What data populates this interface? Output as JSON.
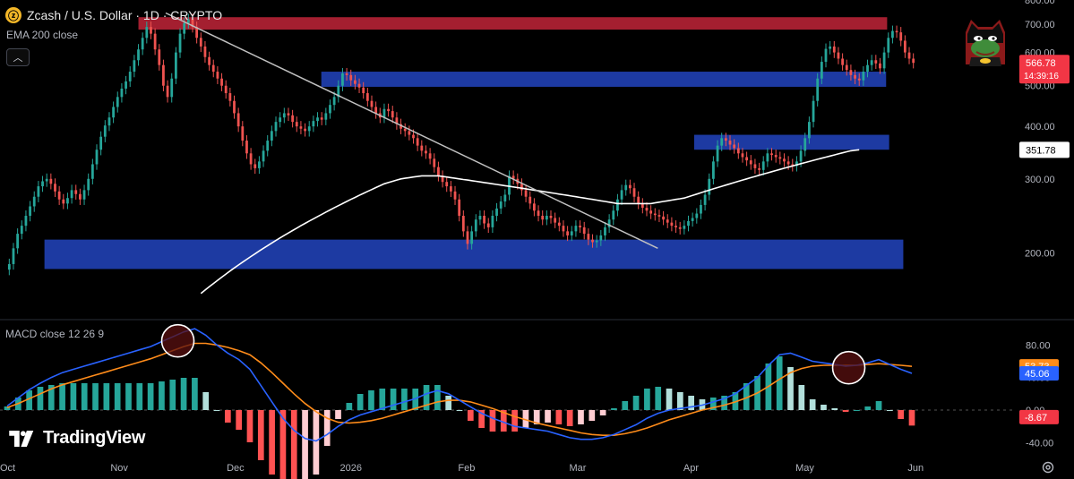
{
  "header": {
    "title": "Zcash / U.S. Dollar · 1D · CRYPTO",
    "coin_icon_glyph": "ⓩ",
    "coin_color": "#f4b728"
  },
  "indicators": {
    "ema_label": "EMA 200 close",
    "macd_label": "MACD close 12 26 9",
    "collapse_icon": "chevron-up-icon"
  },
  "watermark": {
    "text": "TradingView"
  },
  "colors": {
    "bull": "#26a69a",
    "bear": "#ef5350",
    "ema": "#ffffff",
    "trendline": "#c0c0c0",
    "resistance_zone": "#b22234",
    "support_zone": "#1f3fb0",
    "macd_line": "#2962ff",
    "signal_line": "#ff8c1a",
    "price_tag": "#f23645",
    "ema_tag_bg": "#ffffff"
  },
  "chart_data": [
    {
      "type": "candlestick",
      "symbol": "Zcash / U.S. Dollar",
      "interval": "1D",
      "x_tick_labels": [
        "Oct",
        "Nov",
        "Dec",
        "2026",
        "Feb",
        "Mar",
        "Apr",
        "May",
        "Jun"
      ],
      "y_tick_labels": [
        "800.00",
        "700.00",
        "600.00",
        "500.00",
        "400.00",
        "300.00",
        "200.00"
      ],
      "ylim": [
        140,
        800
      ],
      "scale": "log",
      "last_price": "566.78",
      "countdown": "14:39:16",
      "ema_value": "351.78",
      "close_series": [
        188,
        205,
        222,
        232,
        245,
        258,
        272,
        288,
        296,
        300,
        292,
        280,
        268,
        262,
        270,
        282,
        276,
        268,
        282,
        300,
        325,
        352,
        378,
        402,
        420,
        445,
        470,
        492,
        512,
        540,
        575,
        610,
        650,
        690,
        665,
        610,
        560,
        500,
        470,
        520,
        600,
        665,
        705,
        720,
        690,
        650,
        620,
        585,
        560,
        540,
        520,
        500,
        480,
        460,
        430,
        400,
        370,
        345,
        325,
        318,
        330,
        350,
        370,
        390,
        410,
        420,
        430,
        425,
        410,
        400,
        395,
        390,
        400,
        412,
        420,
        415,
        430,
        450,
        470,
        500,
        535,
        530,
        515,
        505,
        495,
        480,
        460,
        445,
        430,
        420,
        440,
        435,
        420,
        405,
        395,
        390,
        382,
        375,
        360,
        350,
        345,
        335,
        320,
        305,
        295,
        288,
        280,
        268,
        245,
        225,
        210,
        225,
        240,
        245,
        235,
        230,
        245,
        255,
        265,
        275,
        305,
        300,
        292,
        282,
        272,
        262,
        252,
        245,
        240,
        245,
        242,
        236,
        232,
        225,
        220,
        225,
        232,
        230,
        222,
        215,
        212,
        214,
        220,
        230,
        240,
        252,
        268,
        282,
        290,
        285,
        272,
        262,
        256,
        252,
        248,
        246,
        244,
        240,
        236,
        232,
        230,
        228,
        232,
        238,
        242,
        248,
        260,
        275,
        300,
        330,
        360,
        375,
        370,
        362,
        355,
        345,
        338,
        332,
        325,
        318,
        315,
        330,
        345,
        342,
        338,
        335,
        330,
        325,
        322,
        330,
        350,
        375,
        410,
        460,
        520,
        570,
        612,
        620,
        600,
        580,
        560,
        545,
        530,
        520,
        515,
        540,
        560,
        575,
        565,
        550,
        600,
        650,
        675,
        670,
        640,
        600,
        580,
        566.78
      ],
      "ema_series": [
        null,
        null,
        null,
        null,
        null,
        null,
        null,
        null,
        null,
        null,
        null,
        null,
        null,
        null,
        null,
        null,
        null,
        null,
        null,
        null,
        null,
        null,
        null,
        null,
        null,
        null,
        null,
        null,
        null,
        null,
        null,
        null,
        null,
        null,
        null,
        null,
        null,
        null,
        null,
        null,
        null,
        null,
        null,
        null,
        null,
        null,
        160,
        163,
        166,
        169,
        172,
        175,
        178,
        181,
        184,
        187,
        190,
        193,
        196,
        199,
        202,
        205,
        208,
        211,
        214,
        217,
        220,
        223,
        226,
        229,
        232,
        235,
        238,
        241,
        244,
        247,
        250,
        253,
        256,
        259,
        262,
        265,
        268,
        271,
        274,
        277,
        280,
        283,
        286,
        289,
        292,
        294,
        296,
        298,
        300,
        301,
        302,
        303,
        304,
        305,
        305,
        305,
        305,
        305,
        304,
        303,
        302,
        301,
        300,
        299,
        298,
        297,
        296,
        295,
        294,
        293,
        292,
        291,
        290,
        289,
        288,
        287,
        286,
        285,
        284,
        283,
        282,
        281,
        280,
        279,
        278,
        277,
        276,
        275,
        274,
        273,
        272,
        271,
        270,
        269,
        268,
        267,
        266,
        265,
        264,
        263,
        262,
        262,
        262,
        262,
        262,
        262,
        262,
        262,
        262,
        263,
        264,
        265,
        266,
        267,
        268,
        269,
        270,
        272,
        274,
        276,
        278,
        280,
        282,
        284,
        286,
        288,
        290,
        292,
        294,
        296,
        298,
        300,
        302,
        304,
        306,
        308,
        310,
        312,
        314,
        316,
        318,
        320,
        322,
        324,
        326,
        328,
        330,
        332,
        334,
        336,
        338,
        340,
        342,
        344,
        346,
        348,
        350,
        351,
        351.78
      ],
      "zones": [
        {
          "kind": "resistance",
          "color": "#b22234",
          "from": 680,
          "to": 728,
          "x_from": 0.137,
          "x_to": 0.878
        },
        {
          "kind": "support",
          "color": "#1f3fb0",
          "from": 497,
          "to": 540,
          "x_from": 0.318,
          "x_to": 0.877
        },
        {
          "kind": "support",
          "color": "#1f3fb0",
          "from": 352,
          "to": 382,
          "x_from": 0.687,
          "x_to": 0.88
        },
        {
          "kind": "support",
          "color": "#1f3fb0",
          "from": 183,
          "to": 215,
          "x_from": 0.044,
          "x_to": 0.894
        }
      ],
      "trendline": {
        "from": 745,
        "to": 205,
        "x_from": 0.164,
        "x_to": 0.651
      }
    },
    {
      "type": "macd",
      "y_tick_labels": [
        "80.00",
        "40.00",
        "0.00",
        "-40.00"
      ],
      "ylim": [
        -55,
        110
      ],
      "macd_value": "45.06",
      "signal_value": "53.73",
      "hist_value": "-8.67",
      "macd_series": [
        5,
        15,
        25,
        33,
        40,
        46,
        50,
        54,
        58,
        62,
        66,
        70,
        74,
        78,
        84,
        90,
        96,
        100,
        92,
        80,
        70,
        62,
        50,
        30,
        10,
        -10,
        -25,
        -35,
        -38,
        -30,
        -20,
        -12,
        -6,
        -2,
        2,
        6,
        10,
        14,
        20,
        24,
        20,
        12,
        4,
        -4,
        -10,
        -15,
        -20,
        -22,
        -24,
        -26,
        -30,
        -34,
        -36,
        -36,
        -34,
        -30,
        -24,
        -18,
        -10,
        -4,
        0,
        2,
        4,
        6,
        10,
        14,
        20,
        30,
        40,
        55,
        68,
        70,
        65,
        60,
        58,
        56,
        54,
        55,
        58,
        62,
        56,
        50,
        45.06
      ],
      "signal_series": [
        3,
        8,
        14,
        20,
        26,
        31,
        35,
        39,
        43,
        47,
        51,
        55,
        59,
        63,
        68,
        73,
        78,
        82,
        82,
        80,
        77,
        73,
        68,
        58,
        46,
        33,
        20,
        8,
        -2,
        -10,
        -15,
        -16,
        -15,
        -13,
        -10,
        -6,
        -2,
        2,
        6,
        10,
        12,
        12,
        10,
        6,
        2,
        -3,
        -8,
        -12,
        -16,
        -19,
        -22,
        -25,
        -28,
        -30,
        -31,
        -31,
        -29,
        -26,
        -22,
        -17,
        -12,
        -8,
        -4,
        0,
        3,
        6,
        10,
        15,
        21,
        29,
        38,
        46,
        51,
        54,
        55,
        55,
        55,
        55,
        56,
        57,
        56,
        55,
        53.73
      ],
      "highlights": [
        {
          "x": 0.176,
          "value": 85
        },
        {
          "x": 0.84,
          "value": 52
        }
      ]
    }
  ]
}
